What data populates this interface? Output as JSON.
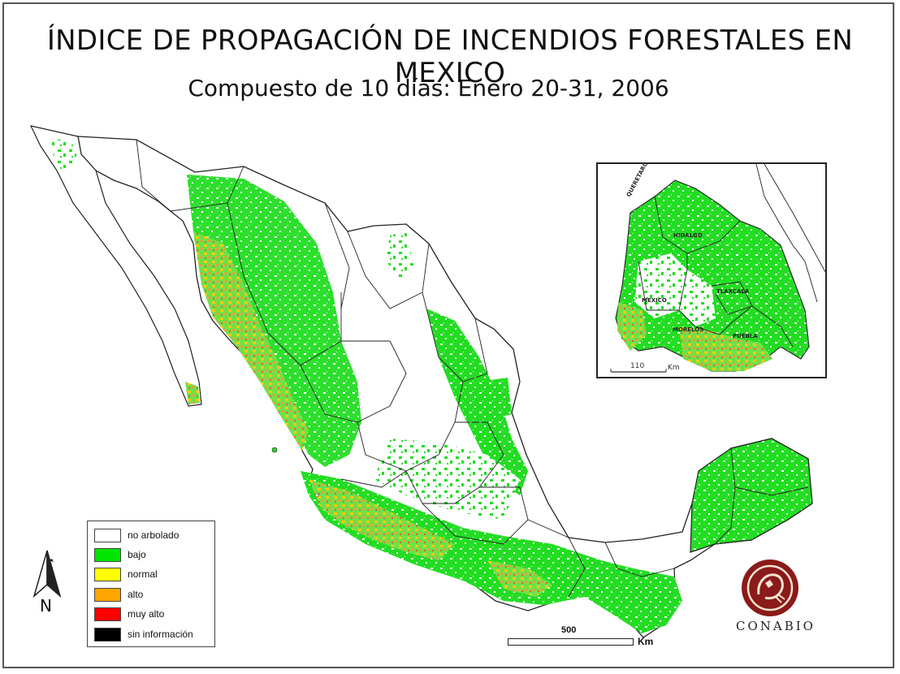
{
  "title": "ÍNDICE DE PROPAGACIÓN DE INCENDIOS FORESTALES EN MEXICO",
  "subtitle": "Compuesto de 10 días: Enero 20-31, 2006",
  "legend": {
    "items": [
      {
        "label": "no arbolado",
        "color": "#ffffff"
      },
      {
        "label": "bajo",
        "color": "#00e600"
      },
      {
        "label": "normal",
        "color": "#ffff00"
      },
      {
        "label": "alto",
        "color": "#ffa500"
      },
      {
        "label": "muy alto",
        "color": "#ff0000"
      },
      {
        "label": "sin información",
        "color": "#000000"
      }
    ]
  },
  "north_arrow": {
    "label": "N",
    "icon": "north-arrow-icon"
  },
  "scale_bar": {
    "value": "500",
    "unit": "Km"
  },
  "inset": {
    "states": [
      "QUERETARO DE ARTEAGA",
      "HIDALGO",
      "MEXICO",
      "TLAXCALA",
      "MORELOS",
      "PUEBLA"
    ],
    "scale_value": "110",
    "scale_unit": "Km"
  },
  "logo": {
    "text": "CONABIO",
    "icon": "conabio-logo-icon"
  }
}
